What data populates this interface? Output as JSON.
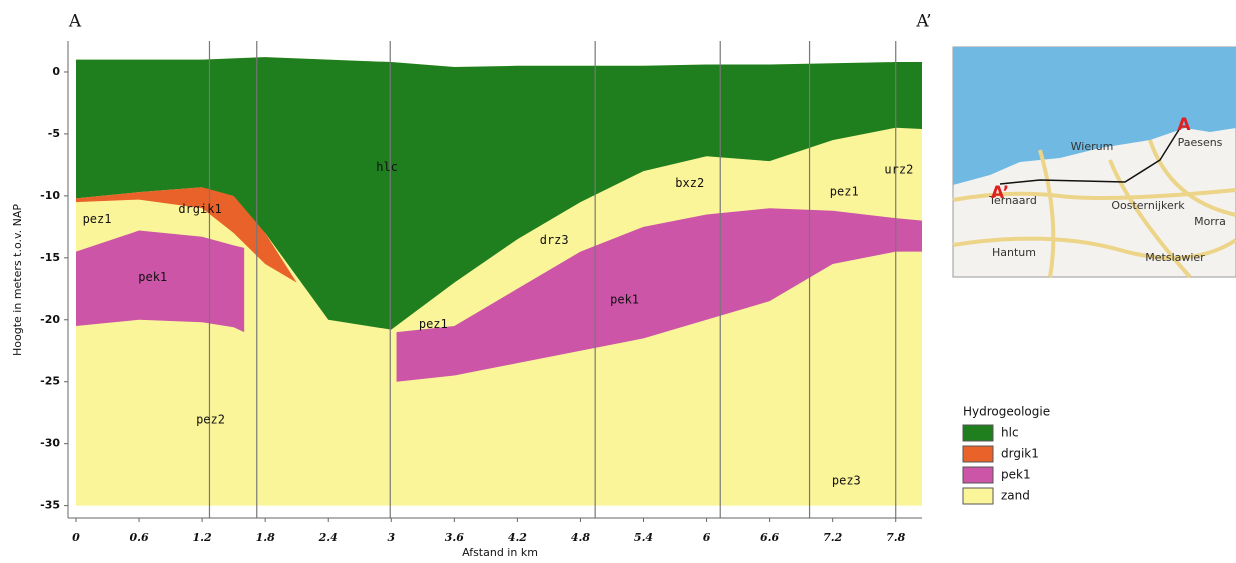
{
  "chart_data": {
    "type": "section",
    "section_start": "A",
    "section_end": "A’",
    "x_label": "Afstand in km",
    "y_label": "Hoogte in meters t.o.v. NAP",
    "xlim": [
      0,
      8.05
    ],
    "ylim": [
      -36,
      2.5
    ],
    "xticks": [
      0,
      0.6,
      1.2,
      1.8,
      2.4,
      3,
      3.6,
      4.2,
      4.8,
      5.4,
      6,
      6.6,
      7.2,
      7.8
    ],
    "yticks": [
      0,
      -5,
      -10,
      -15,
      -20,
      -25,
      -30,
      -35
    ],
    "boreholes": [
      1.27,
      1.72,
      2.99,
      4.94,
      6.13,
      6.98,
      7.8
    ],
    "legend_title": "Hydrogeologie",
    "series": [
      {
        "name": "zand",
        "color": "#fbf59a",
        "parts": [
          {
            "x": [
              0,
              0.6,
              1.2,
              1.8,
              2.4,
              3.0,
              3.6,
              4.2,
              4.8,
              5.4,
              6.0,
              6.6,
              7.2,
              7.8,
              8.05
            ],
            "top": [
              1,
              1,
              1,
              1.2,
              1,
              0.8,
              0.4,
              0.5,
              0.5,
              0.5,
              0.6,
              0.6,
              0.7,
              0.8,
              0.8
            ],
            "bottom": [
              -35,
              -35,
              -35,
              -35,
              -35,
              -35,
              -35,
              -35,
              -35,
              -35,
              -35,
              -35,
              -35,
              -35,
              -35
            ]
          }
        ]
      },
      {
        "name": "hlc",
        "color": "#1f7f1f",
        "parts": [
          {
            "x": [
              0,
              0.6,
              1.2,
              1.8,
              2.4,
              3.0,
              3.6,
              4.2,
              4.8,
              5.4,
              6.0,
              6.6,
              7.2,
              7.8,
              8.05
            ],
            "top": [
              1,
              1,
              1,
              1.2,
              1,
              0.8,
              0.4,
              0.5,
              0.5,
              0.5,
              0.6,
              0.6,
              0.7,
              0.8,
              0.8
            ],
            "bottom": [
              -10.2,
              -9.7,
              -9.3,
              -13,
              -20,
              -20.8,
              -17,
              -13.5,
              -10.5,
              -8,
              -6.8,
              -7.2,
              -5.5,
              -4.5,
              -4.6
            ]
          }
        ]
      },
      {
        "name": "drgik1",
        "color": "#e8622a",
        "parts": [
          {
            "x": [
              0,
              0.6,
              1.2,
              1.5,
              1.8,
              2.1
            ],
            "top": [
              -10.2,
              -9.7,
              -9.3,
              -10,
              -13,
              -17
            ],
            "bottom": [
              -10.5,
              -10.3,
              -11,
              -13,
              -15.5,
              -17
            ]
          }
        ]
      },
      {
        "name": "pek1",
        "color": "#cc55a8",
        "parts": [
          {
            "x": [
              0,
              0.6,
              1.2,
              1.5,
              1.6
            ],
            "top": [
              -14.5,
              -12.8,
              -13.3,
              -14,
              -14.2
            ],
            "bottom": [
              -20.5,
              -20,
              -20.2,
              -20.6,
              -21
            ]
          },
          {
            "x": [
              3.05,
              3.6,
              4.2,
              4.8,
              5.4,
              6.0,
              6.6,
              7.2,
              7.8,
              8.05
            ],
            "top": [
              -21,
              -20.5,
              -17.5,
              -14.5,
              -12.5,
              -11.5,
              -11,
              -11.2,
              -11.8,
              -12
            ],
            "bottom": [
              -25,
              -24.5,
              -23.5,
              -22.5,
              -21.5,
              -20,
              -18.5,
              -15.5,
              -14.5,
              -14.5
            ]
          }
        ]
      }
    ],
    "annotations": [
      {
        "text": "hlc",
        "x": 2.96,
        "y": -7.7
      },
      {
        "text": "drgik1",
        "x": 1.18,
        "y": -11.1
      },
      {
        "text": "pez1",
        "x": 0.2,
        "y": -11.9
      },
      {
        "text": "pek1",
        "x": 0.73,
        "y": -16.6
      },
      {
        "text": "pez2",
        "x": 1.28,
        "y": -28.1
      },
      {
        "text": "drz3",
        "x": 4.55,
        "y": -13.6
      },
      {
        "text": "pez1",
        "x": 3.4,
        "y": -20.4
      },
      {
        "text": "pek1",
        "x": 5.22,
        "y": -18.4
      },
      {
        "text": "bxz2",
        "x": 5.84,
        "y": -9
      },
      {
        "text": "pez1",
        "x": 7.31,
        "y": -9.7
      },
      {
        "text": "urz2",
        "x": 7.83,
        "y": -7.9
      },
      {
        "text": "pez3",
        "x": 7.33,
        "y": -33
      }
    ]
  },
  "map": {
    "labels": [
      "Wierum",
      "Paesens",
      "Ternaard",
      "Oosternijkerk",
      "Morra",
      "Hantum",
      "Metslawier"
    ],
    "marker_a": "A",
    "marker_a2": "A’"
  }
}
